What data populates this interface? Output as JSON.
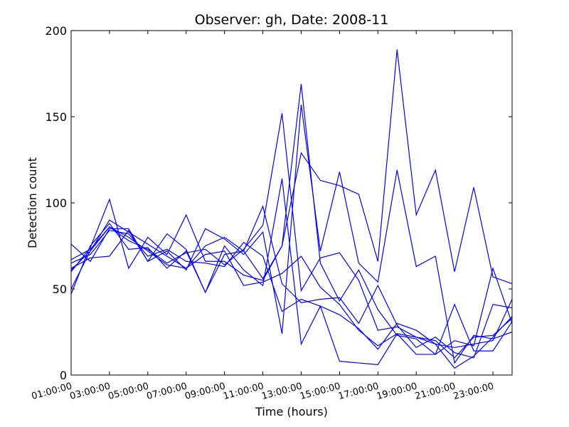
{
  "chart_data": {
    "type": "line",
    "title": "Observer: gh, Date: 2008-11",
    "xlabel": "Time (hours)",
    "ylabel": "Detection count",
    "ylim": [
      0,
      200
    ],
    "xlim": [
      1,
      24
    ],
    "yticks": [
      0,
      50,
      100,
      150,
      200
    ],
    "xticks": [
      1,
      3,
      5,
      7,
      9,
      11,
      13,
      15,
      17,
      19,
      21,
      23
    ],
    "xtick_labels": [
      "01:00:00",
      "03:00:00",
      "05:00:00",
      "07:00:00",
      "09:00:00",
      "11:00:00",
      "13:00:00",
      "15:00:00",
      "17:00:00",
      "19:00:00",
      "21:00:00",
      "23:00:00"
    ],
    "line_color": "#0000ff",
    "grid": false,
    "series": [
      {
        "x": [
          1,
          2,
          3,
          4,
          5,
          6,
          7,
          8,
          9,
          10,
          11,
          12,
          13,
          14,
          15,
          16,
          17,
          18,
          19,
          20,
          21,
          22,
          23,
          24
        ],
        "y": [
          60,
          74,
          102,
          62,
          80,
          70,
          93,
          66,
          66,
          58,
          55,
          75,
          129,
          113,
          110,
          105,
          66,
          189,
          93,
          119,
          60,
          109,
          57,
          53
        ]
      },
      {
        "x": [
          1,
          2,
          3,
          4,
          5,
          6,
          7,
          8,
          9,
          10,
          11,
          12,
          13,
          14,
          15,
          16,
          17,
          18,
          19,
          20,
          21,
          22,
          23,
          24
        ],
        "y": [
          62,
          68,
          69,
          84,
          66,
          72,
          61,
          85,
          79,
          70,
          83,
          24,
          157,
          72,
          118,
          65,
          54,
          119,
          63,
          69,
          7,
          23,
          21,
          25
        ]
      },
      {
        "x": [
          1,
          2,
          3,
          4,
          5,
          6,
          7,
          8,
          9,
          10,
          11,
          12,
          13,
          14,
          15,
          16,
          17,
          18,
          19,
          20,
          21,
          22,
          23,
          24
        ],
        "y": [
          47,
          75,
          88,
          73,
          74,
          62,
          72,
          48,
          70,
          72,
          98,
          53,
          42,
          44,
          45,
          30,
          52,
          29,
          16,
          22,
          13,
          10,
          41,
          39
        ]
      },
      {
        "x": [
          1,
          2,
          3,
          4,
          5,
          6,
          7,
          8,
          9,
          10,
          11,
          12,
          13,
          14,
          15,
          16,
          17,
          18,
          19,
          20,
          21,
          22,
          23,
          24
        ],
        "y": [
          76,
          66,
          85,
          85,
          66,
          82,
          73,
          48,
          75,
          61,
          52,
          114,
          18,
          40,
          8,
          7,
          6,
          24,
          12,
          12,
          41,
          14,
          14,
          31
        ]
      },
      {
        "x": [
          1,
          2,
          3,
          4,
          5,
          6,
          7,
          8,
          9,
          10,
          11,
          12,
          13,
          14,
          15,
          16,
          17,
          18,
          19,
          20,
          21,
          22,
          23,
          24
        ],
        "y": [
          50,
          72,
          90,
          83,
          76,
          69,
          62,
          75,
          80,
          72,
          56,
          75,
          169,
          65,
          43,
          61,
          38,
          23,
          21,
          12,
          20,
          17,
          62,
          30
        ]
      },
      {
        "x": [
          1,
          2,
          3,
          4,
          5,
          6,
          7,
          8,
          9,
          10,
          11,
          12,
          13,
          14,
          15,
          16,
          17,
          18,
          19,
          20,
          21,
          22,
          23,
          24
        ],
        "y": [
          67,
          73,
          86,
          80,
          72,
          64,
          62,
          70,
          72,
          52,
          54,
          59,
          69,
          51,
          41,
          26,
          17,
          24,
          22,
          18,
          16,
          18,
          20,
          44
        ]
      },
      {
        "x": [
          1,
          2,
          3,
          4,
          5,
          6,
          7,
          8,
          9,
          10,
          11,
          12,
          13,
          14,
          15,
          16,
          17,
          18,
          19,
          20,
          21,
          22,
          23,
          24
        ],
        "y": [
          61,
          72,
          86,
          78,
          73,
          65,
          71,
          73,
          64,
          73,
          87,
          152,
          49,
          68,
          71,
          55,
          26,
          28,
          22,
          20,
          10,
          22,
          23,
          33
        ]
      },
      {
        "x": [
          1,
          2,
          3,
          4,
          5,
          6,
          7,
          8,
          9,
          10,
          11,
          12,
          13,
          14,
          15,
          16,
          17,
          18,
          19,
          20,
          21,
          22,
          23,
          24
        ],
        "y": [
          65,
          70,
          84,
          82,
          69,
          73,
          66,
          65,
          63,
          77,
          69,
          37,
          44,
          40,
          35,
          27,
          15,
          30,
          26,
          18,
          4,
          11,
          22,
          34
        ]
      }
    ]
  }
}
